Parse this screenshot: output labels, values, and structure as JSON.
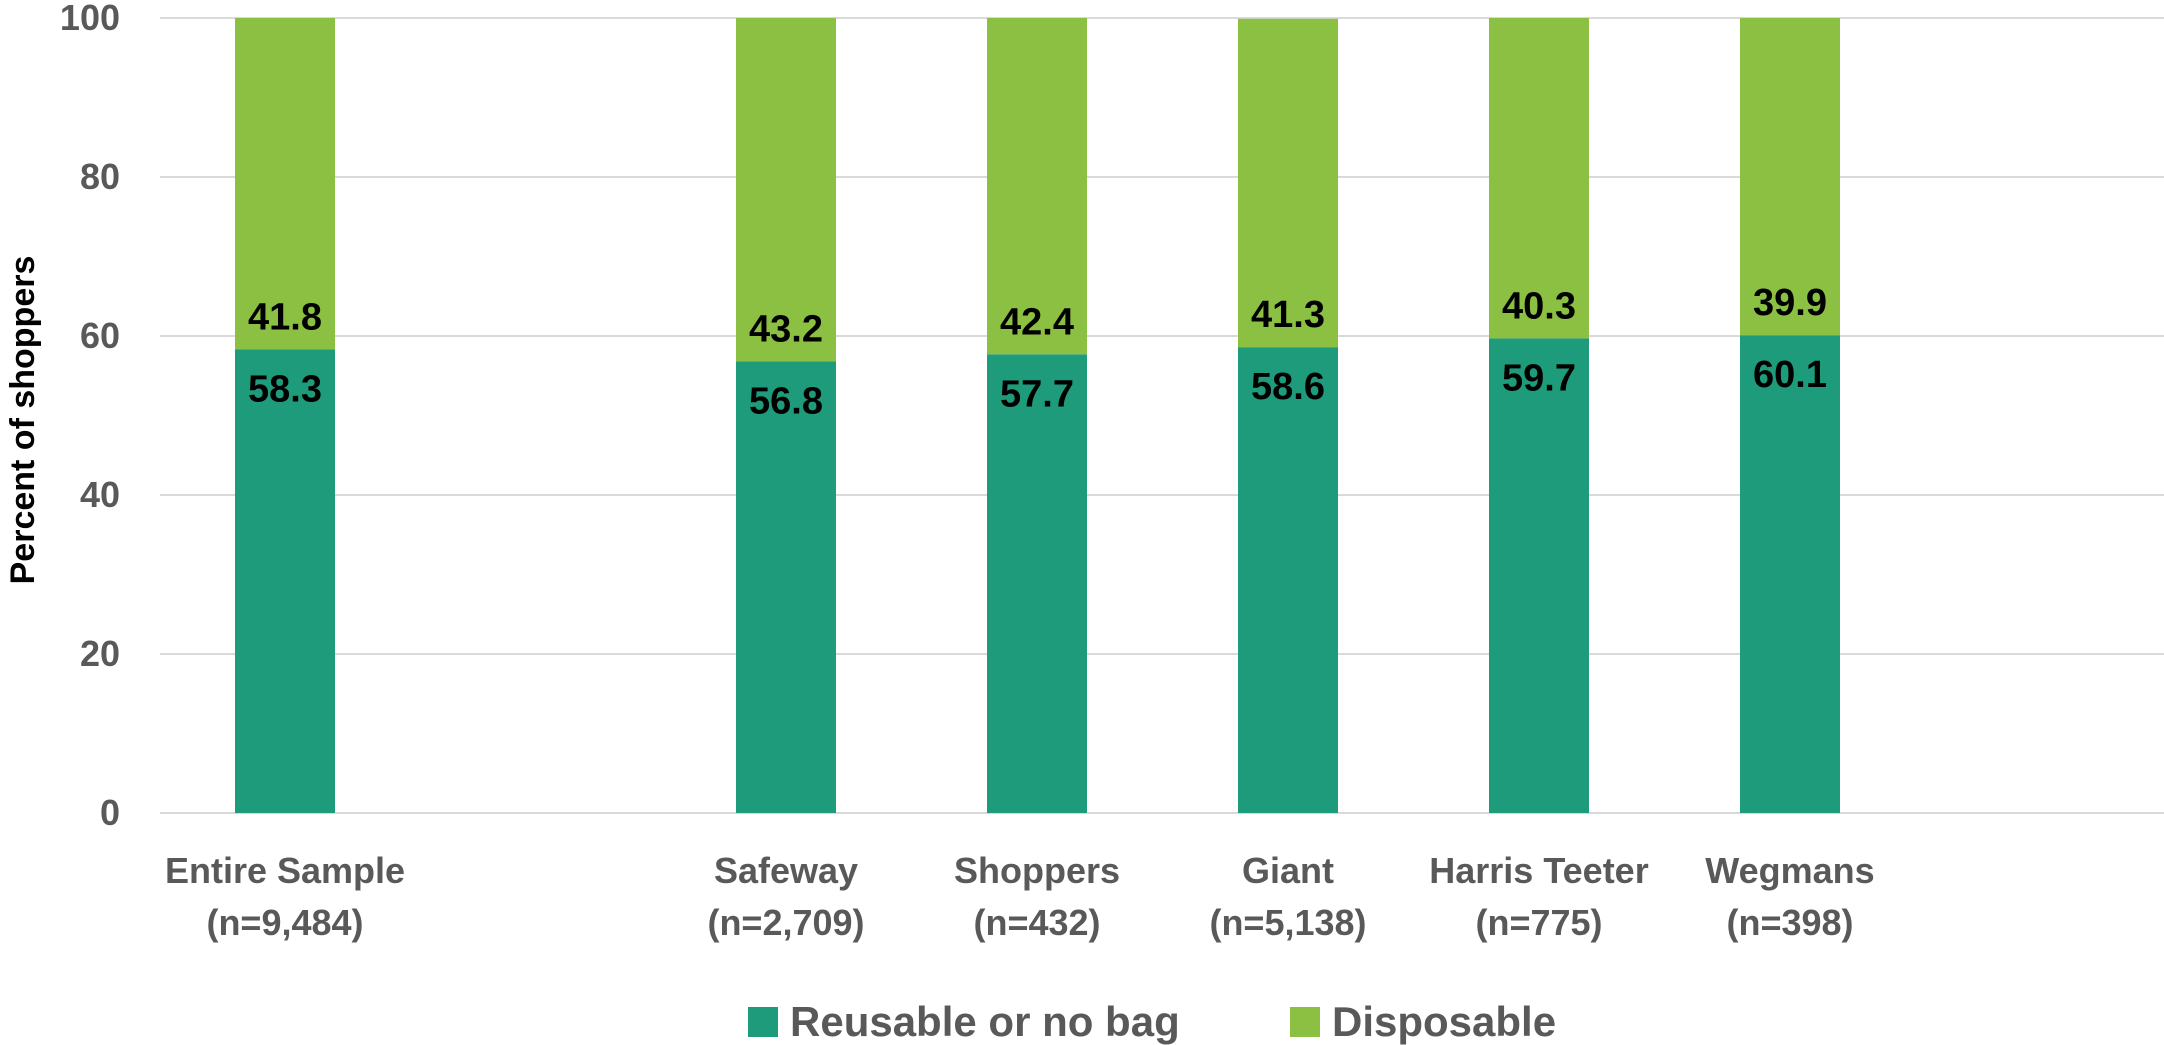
{
  "chart_data": {
    "type": "bar",
    "stacked": true,
    "ylabel": "Percent of shoppers",
    "xlabel": "",
    "ylim": [
      0,
      100
    ],
    "yticks": [
      0,
      20,
      40,
      60,
      80,
      100
    ],
    "grid": true,
    "legend_position": "bottom",
    "categories": [
      {
        "line1": "Entire Sample",
        "line2": "(n=9,484)"
      },
      {
        "line1": "Safeway",
        "line2": "(n=2,709)"
      },
      {
        "line1": "Shoppers",
        "line2": "(n=432)"
      },
      {
        "line1": "Giant",
        "line2": "(n=5,138)"
      },
      {
        "line1": "Harris Teeter",
        "line2": "(n=775)"
      },
      {
        "line1": "Wegmans",
        "line2": "(n=398)"
      }
    ],
    "series": [
      {
        "name": "Reusable or no bag",
        "color": "#1d9b7b",
        "values": [
          58.3,
          56.8,
          57.7,
          58.6,
          59.7,
          60.1
        ]
      },
      {
        "name": "Disposable",
        "color": "#8bc042",
        "values": [
          41.8,
          43.2,
          42.4,
          41.3,
          40.3,
          39.9
        ]
      }
    ],
    "colors": {
      "grid": "#d9d9d9",
      "axis_text": "#595959"
    }
  }
}
